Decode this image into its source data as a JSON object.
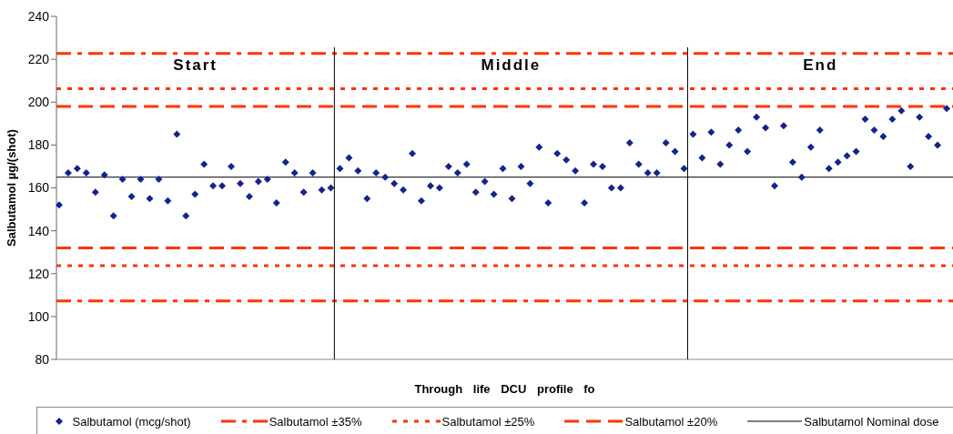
{
  "chart_data": {
    "type": "scatter",
    "xlabel": "Through life DCU profile fo",
    "ylabel": "Salbutamol µg/(shot)",
    "categories": [
      null,
      null,
      null,
      null,
      null,
      null,
      null,
      null,
      null,
      null,
      null,
      null,
      null,
      null,
      null,
      null,
      null,
      null,
      null,
      null,
      null,
      null,
      null,
      null,
      null,
      null,
      null,
      null,
      null,
      null,
      null,
      null,
      null,
      null,
      null,
      null,
      null,
      null,
      null,
      null,
      null,
      null,
      null,
      null,
      null,
      null,
      null,
      null,
      null,
      null,
      null,
      null,
      null,
      null,
      null,
      null,
      null,
      null,
      null,
      null,
      null,
      null,
      null,
      null,
      null,
      null,
      null,
      null,
      null,
      null,
      null,
      null,
      null,
      null,
      null,
      null,
      null,
      null,
      null,
      null,
      null,
      null,
      null,
      null,
      null,
      null,
      null,
      null,
      null,
      null,
      null,
      null,
      null,
      null,
      null,
      null,
      null,
      null,
      null
    ],
    "series": [
      {
        "name": "Salbutamol (mcg/shot)",
        "color": "#13238f",
        "values": [
          152,
          167,
          169,
          167,
          158,
          166,
          147,
          164,
          156,
          164,
          155,
          164,
          154,
          185,
          147,
          157,
          171,
          161,
          161,
          170,
          162,
          156,
          163,
          164,
          153,
          172,
          167,
          158,
          167,
          159,
          160,
          169,
          174,
          168,
          155,
          167,
          165,
          162,
          159,
          176,
          154,
          161,
          160,
          170,
          167,
          171,
          158,
          163,
          157,
          169,
          155,
          170,
          162,
          179,
          153,
          176,
          173,
          168,
          153,
          171,
          170,
          160,
          160,
          181,
          171,
          167,
          167,
          181,
          177,
          169,
          185,
          174,
          186,
          171,
          180,
          187,
          177,
          193,
          188,
          161,
          189,
          172,
          165,
          179,
          187,
          169,
          172,
          175,
          177,
          192,
          187,
          184,
          192,
          196,
          170,
          193,
          184,
          180,
          197
        ]
      }
    ],
    "marker": "diamond",
    "ylim": [
      80,
      240
    ],
    "yticks": [
      80,
      100,
      120,
      140,
      160,
      180,
      200,
      220,
      240
    ],
    "grid": false,
    "legend": "bottom",
    "tick_labels": "y",
    "ref_lines": [
      {
        "axis": "y",
        "value": 222.75,
        "label": "Salbutamol ±35%",
        "color": "#ff3300",
        "line_style": "dashdot"
      },
      {
        "axis": "y",
        "value": 107.25,
        "color": "#ff3300",
        "line_style": "dashdot"
      },
      {
        "axis": "y",
        "value": 206.25,
        "label": "Salbutamol ±25%",
        "color": "#ff3300",
        "line_style": "dotted"
      },
      {
        "axis": "y",
        "value": 123.75,
        "color": "#ff3300",
        "line_style": "dotted"
      },
      {
        "axis": "y",
        "value": 198,
        "label": "Salbutamol ±20%",
        "color": "#ff3300",
        "line_style": "dashed"
      },
      {
        "axis": "y",
        "value": 132,
        "color": "#ff3300",
        "line_style": "dashed"
      },
      {
        "axis": "y",
        "value": 165,
        "label": "Salbutamol Nominal dose",
        "color": "#000000",
        "line_style": "solid"
      }
    ],
    "annotations": [
      "Start",
      "Middle",
      "End"
    ]
  }
}
